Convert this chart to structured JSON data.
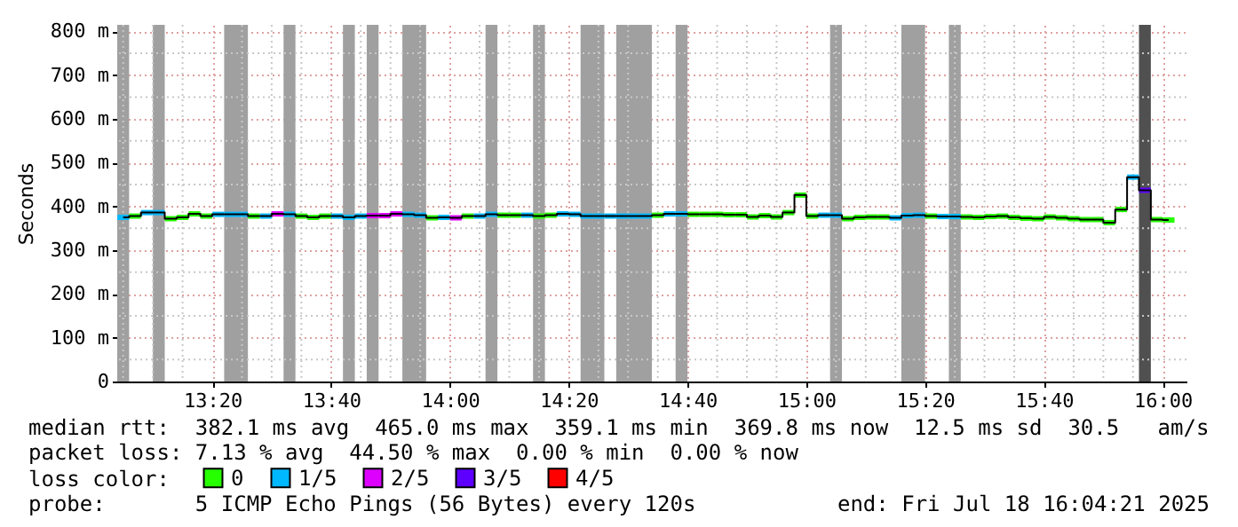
{
  "chart_data": {
    "type": "step",
    "ylabel": "Seconds",
    "legend_title": "loss color:",
    "legend": "bottom",
    "grid": true,
    "xlim": [
      "2025-07-18T13:04",
      "2025-07-18T16:04"
    ],
    "xticks": [
      {
        "value": "2025-07-18T13:05",
        "label": null
      },
      {
        "value": "2025-07-18T13:10",
        "label": null
      },
      {
        "value": "2025-07-18T13:15",
        "label": null
      },
      {
        "value": "2025-07-18T13:20",
        "label": "13:20"
      },
      {
        "value": "2025-07-18T13:25",
        "label": null
      },
      {
        "value": "2025-07-18T13:30",
        "label": null
      },
      {
        "value": "2025-07-18T13:35",
        "label": null
      },
      {
        "value": "2025-07-18T13:40",
        "label": "13:40"
      },
      {
        "value": "2025-07-18T13:45",
        "label": null
      },
      {
        "value": "2025-07-18T13:50",
        "label": null
      },
      {
        "value": "2025-07-18T13:55",
        "label": null
      },
      {
        "value": "2025-07-18T14:00",
        "label": "14:00"
      },
      {
        "value": "2025-07-18T14:05",
        "label": null
      },
      {
        "value": "2025-07-18T14:10",
        "label": null
      },
      {
        "value": "2025-07-18T14:15",
        "label": null
      },
      {
        "value": "2025-07-18T14:20",
        "label": "14:20"
      },
      {
        "value": "2025-07-18T14:25",
        "label": null
      },
      {
        "value": "2025-07-18T14:30",
        "label": null
      },
      {
        "value": "2025-07-18T14:35",
        "label": null
      },
      {
        "value": "2025-07-18T14:40",
        "label": "14:40"
      },
      {
        "value": "2025-07-18T14:45",
        "label": null
      },
      {
        "value": "2025-07-18T14:50",
        "label": null
      },
      {
        "value": "2025-07-18T14:55",
        "label": null
      },
      {
        "value": "2025-07-18T15:00",
        "label": "15:00"
      },
      {
        "value": "2025-07-18T15:05",
        "label": null
      },
      {
        "value": "2025-07-18T15:10",
        "label": null
      },
      {
        "value": "2025-07-18T15:15",
        "label": null
      },
      {
        "value": "2025-07-18T15:20",
        "label": "15:20"
      },
      {
        "value": "2025-07-18T15:25",
        "label": null
      },
      {
        "value": "2025-07-18T15:30",
        "label": null
      },
      {
        "value": "2025-07-18T15:35",
        "label": null
      },
      {
        "value": "2025-07-18T15:40",
        "label": "15:40"
      },
      {
        "value": "2025-07-18T15:45",
        "label": null
      },
      {
        "value": "2025-07-18T15:50",
        "label": null
      },
      {
        "value": "2025-07-18T15:55",
        "label": null
      },
      {
        "value": "2025-07-18T16:00",
        "label": "16:00"
      }
    ],
    "ylim": [
      0,
      815
    ],
    "yticks": [
      {
        "value": 0,
        "label": "0"
      },
      {
        "value": 50,
        "label": null
      },
      {
        "value": 100,
        "label": "100 m"
      },
      {
        "value": 150,
        "label": null
      },
      {
        "value": 200,
        "label": "200 m"
      },
      {
        "value": 250,
        "label": null
      },
      {
        "value": 300,
        "label": "300 m"
      },
      {
        "value": 350,
        "label": null
      },
      {
        "value": 400,
        "label": "400 m"
      },
      {
        "value": 450,
        "label": null
      },
      {
        "value": 500,
        "label": "500 m"
      },
      {
        "value": 550,
        "label": null
      },
      {
        "value": 600,
        "label": "600 m"
      },
      {
        "value": 650,
        "label": null
      },
      {
        "value": 700,
        "label": "700 m"
      },
      {
        "value": 750,
        "label": null
      },
      {
        "value": 800,
        "label": "800 m"
      }
    ],
    "x": [
      "2025-07-18T13:05",
      "2025-07-18T13:07",
      "2025-07-18T13:09",
      "2025-07-18T13:11",
      "2025-07-18T13:13",
      "2025-07-18T13:15",
      "2025-07-18T13:17",
      "2025-07-18T13:19",
      "2025-07-18T13:21",
      "2025-07-18T13:23",
      "2025-07-18T13:25",
      "2025-07-18T13:27",
      "2025-07-18T13:29",
      "2025-07-18T13:31",
      "2025-07-18T13:33",
      "2025-07-18T13:35",
      "2025-07-18T13:37",
      "2025-07-18T13:39",
      "2025-07-18T13:41",
      "2025-07-18T13:43",
      "2025-07-18T13:45",
      "2025-07-18T13:47",
      "2025-07-18T13:49",
      "2025-07-18T13:51",
      "2025-07-18T13:53",
      "2025-07-18T13:55",
      "2025-07-18T13:57",
      "2025-07-18T13:59",
      "2025-07-18T14:01",
      "2025-07-18T14:03",
      "2025-07-18T14:05",
      "2025-07-18T14:07",
      "2025-07-18T14:09",
      "2025-07-18T14:11",
      "2025-07-18T14:13",
      "2025-07-18T14:15",
      "2025-07-18T14:17",
      "2025-07-18T14:19",
      "2025-07-18T14:21",
      "2025-07-18T14:23",
      "2025-07-18T14:25",
      "2025-07-18T14:27",
      "2025-07-18T14:29",
      "2025-07-18T14:31",
      "2025-07-18T14:33",
      "2025-07-18T14:35",
      "2025-07-18T14:37",
      "2025-07-18T14:39",
      "2025-07-18T14:41",
      "2025-07-18T14:43",
      "2025-07-18T14:45",
      "2025-07-18T14:47",
      "2025-07-18T14:49",
      "2025-07-18T14:51",
      "2025-07-18T14:53",
      "2025-07-18T14:55",
      "2025-07-18T14:57",
      "2025-07-18T14:59",
      "2025-07-18T15:01",
      "2025-07-18T15:03",
      "2025-07-18T15:05",
      "2025-07-18T15:07",
      "2025-07-18T15:09",
      "2025-07-18T15:11",
      "2025-07-18T15:13",
      "2025-07-18T15:15",
      "2025-07-18T15:17",
      "2025-07-18T15:19",
      "2025-07-18T15:21",
      "2025-07-18T15:23",
      "2025-07-18T15:25",
      "2025-07-18T15:27",
      "2025-07-18T15:29",
      "2025-07-18T15:31",
      "2025-07-18T15:33",
      "2025-07-18T15:35",
      "2025-07-18T15:37",
      "2025-07-18T15:39",
      "2025-07-18T15:41",
      "2025-07-18T15:43",
      "2025-07-18T15:45",
      "2025-07-18T15:47",
      "2025-07-18T15:49",
      "2025-07-18T15:51",
      "2025-07-18T15:53",
      "2025-07-18T15:55",
      "2025-07-18T15:57",
      "2025-07-18T15:59",
      "2025-07-18T16:01"
    ],
    "series": [
      {
        "color": "#000000",
        "values": [
          375,
          378,
          386,
          386,
          372,
          375,
          383,
          378,
          382,
          382,
          382,
          378,
          378,
          383,
          382,
          378,
          375,
          378,
          378,
          375,
          378,
          379,
          379,
          383,
          382,
          380,
          374,
          375,
          374,
          378,
          378,
          382,
          380,
          380,
          380,
          378,
          380,
          383,
          382,
          378,
          378,
          378,
          378,
          378,
          378,
          380,
          383,
          383,
          382,
          382,
          382,
          381,
          381,
          376,
          379,
          376,
          386,
          426,
          378,
          380,
          380,
          372,
          375,
          376,
          376,
          374,
          379,
          380,
          378,
          377,
          377,
          376,
          375,
          377,
          378,
          375,
          373,
          372,
          376,
          374,
          372,
          370,
          370,
          363,
          393,
          467,
          437,
          370,
          369
        ]
      },
      {
        "type": "scatter",
        "marker": "square",
        "name": "0",
        "color": "#26ff00",
        "values": [
          null,
          378,
          null,
          null,
          372,
          375,
          383,
          378,
          null,
          null,
          null,
          378,
          null,
          null,
          null,
          378,
          375,
          378,
          null,
          null,
          null,
          null,
          null,
          null,
          null,
          null,
          374,
          null,
          null,
          378,
          null,
          null,
          380,
          380,
          null,
          378,
          380,
          null,
          null,
          null,
          null,
          null,
          null,
          null,
          null,
          380,
          null,
          null,
          382,
          382,
          382,
          381,
          381,
          376,
          379,
          376,
          386,
          426,
          378,
          null,
          null,
          372,
          375,
          376,
          376,
          null,
          null,
          null,
          378,
          null,
          null,
          376,
          375,
          377,
          378,
          375,
          373,
          372,
          376,
          374,
          372,
          370,
          370,
          363,
          393,
          null,
          null,
          370,
          369
        ]
      },
      {
        "type": "scatter",
        "marker": "square",
        "name": "1/5",
        "color": "#00b8ff",
        "values": [
          375,
          null,
          386,
          386,
          null,
          null,
          null,
          null,
          382,
          382,
          382,
          null,
          378,
          null,
          382,
          null,
          null,
          null,
          378,
          375,
          378,
          null,
          null,
          null,
          382,
          380,
          null,
          375,
          null,
          null,
          378,
          382,
          null,
          null,
          380,
          null,
          null,
          383,
          382,
          378,
          378,
          378,
          378,
          378,
          378,
          null,
          383,
          383,
          null,
          null,
          null,
          null,
          null,
          null,
          null,
          null,
          null,
          null,
          null,
          380,
          380,
          null,
          null,
          null,
          null,
          374,
          379,
          380,
          null,
          377,
          377,
          null,
          null,
          null,
          null,
          null,
          null,
          null,
          null,
          null,
          null,
          null,
          null,
          null,
          null,
          467,
          null,
          null,
          null
        ]
      },
      {
        "type": "scatter",
        "marker": "square",
        "name": "2/5",
        "color": "#dd00ff",
        "x": [
          "2025-07-18T13:31",
          "2025-07-18T13:47",
          "2025-07-18T13:49",
          "2025-07-18T13:51",
          "2025-07-18T14:01"
        ],
        "values": [
          383,
          379,
          379,
          383,
          374
        ]
      },
      {
        "type": "scatter",
        "marker": "square",
        "name": "3/5",
        "color": "#5e00ff",
        "x": [
          "2025-07-18T15:57"
        ],
        "values": [
          437
        ]
      },
      {
        "type": "scatter",
        "marker": "square",
        "name": "4/5",
        "color": "#ff0000",
        "values": [
          null,
          null,
          null,
          null,
          null,
          null,
          null,
          null,
          null,
          null,
          null,
          null,
          null,
          null,
          null,
          null,
          null,
          null,
          null,
          null,
          null,
          null,
          null,
          null,
          null,
          null,
          null,
          null,
          null,
          null,
          null,
          null,
          null,
          null,
          null,
          null,
          null,
          null,
          null,
          null,
          null,
          null,
          null,
          null,
          null,
          null,
          null,
          null,
          null,
          null,
          null,
          null,
          null,
          null,
          null,
          null,
          null,
          null,
          null,
          null,
          null,
          null,
          null,
          null,
          null,
          null,
          null,
          null,
          null,
          null,
          null,
          null,
          null,
          null,
          null,
          null,
          null,
          null,
          null,
          null,
          null,
          null,
          null,
          null,
          null,
          null,
          null,
          null,
          null
        ]
      }
    ],
    "bands": [
      {
        "axis": "x",
        "from": "2025-07-18T13:04",
        "to": "2025-07-18T13:06",
        "color": "#a0a0a0"
      },
      {
        "axis": "x",
        "from": "2025-07-18T13:10",
        "to": "2025-07-18T13:12",
        "color": "#a0a0a0"
      },
      {
        "axis": "x",
        "from": "2025-07-18T13:22",
        "to": "2025-07-18T13:26",
        "color": "#a0a0a0"
      },
      {
        "axis": "x",
        "from": "2025-07-18T13:32",
        "to": "2025-07-18T13:34",
        "color": "#a0a0a0"
      },
      {
        "axis": "x",
        "from": "2025-07-18T13:42",
        "to": "2025-07-18T13:44",
        "color": "#a0a0a0"
      },
      {
        "axis": "x",
        "from": "2025-07-18T13:46",
        "to": "2025-07-18T13:48",
        "color": "#a0a0a0"
      },
      {
        "axis": "x",
        "from": "2025-07-18T13:52",
        "to": "2025-07-18T13:56",
        "color": "#a0a0a0"
      },
      {
        "axis": "x",
        "from": "2025-07-18T14:06",
        "to": "2025-07-18T14:08",
        "color": "#a0a0a0"
      },
      {
        "axis": "x",
        "from": "2025-07-18T14:14",
        "to": "2025-07-18T14:16",
        "color": "#a0a0a0"
      },
      {
        "axis": "x",
        "from": "2025-07-18T14:22",
        "to": "2025-07-18T14:26",
        "color": "#a0a0a0"
      },
      {
        "axis": "x",
        "from": "2025-07-18T14:28",
        "to": "2025-07-18T14:34",
        "color": "#a0a0a0"
      },
      {
        "axis": "x",
        "from": "2025-07-18T14:38",
        "to": "2025-07-18T14:40",
        "color": "#a0a0a0"
      },
      {
        "axis": "x",
        "from": "2025-07-18T15:04",
        "to": "2025-07-18T15:06",
        "color": "#a0a0a0"
      },
      {
        "axis": "x",
        "from": "2025-07-18T15:16",
        "to": "2025-07-18T15:20",
        "color": "#a0a0a0"
      },
      {
        "axis": "x",
        "from": "2025-07-18T15:24",
        "to": "2025-07-18T15:26",
        "color": "#a0a0a0"
      },
      {
        "axis": "x",
        "from": "2025-07-18T15:56",
        "to": "2025-07-18T15:58",
        "color": "#505050"
      }
    ],
    "annotations": [
      "median rtt:  382.1 ms avg  465.0 ms max  359.1 ms min  369.8 ms now  12.5 ms sd  30.5   am/s",
      "packet loss: 7.13 % avg  44.50 % max  0.00 % min  0.00 % now",
      "probe:       5 ICMP Echo Pings (56 Bytes) every 120s",
      "end: Fri Jul 18 16:04:21 2025"
    ]
  }
}
